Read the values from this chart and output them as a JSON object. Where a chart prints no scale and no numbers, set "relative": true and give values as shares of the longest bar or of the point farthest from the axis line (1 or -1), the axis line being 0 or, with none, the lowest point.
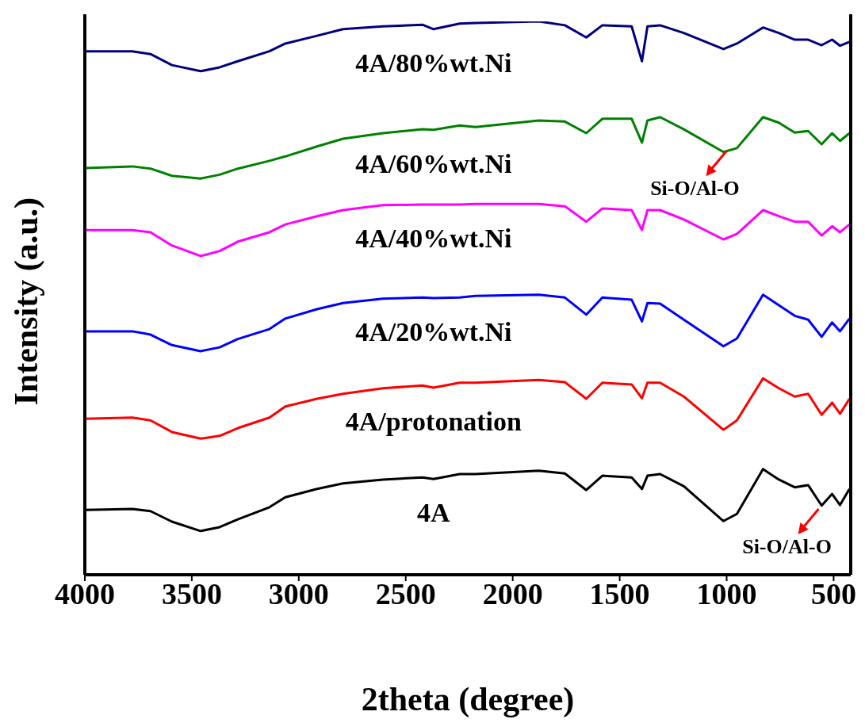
{
  "chart_data": {
    "type": "line",
    "xlabel": "2theta (degree)",
    "ylabel": "Intensity (a.u.)",
    "relative": true,
    "xlim": [
      4000,
      420
    ],
    "xticks": [
      4000,
      3500,
      3000,
      2500,
      2000,
      1500,
      1000,
      500
    ],
    "x": [
      4000,
      3778,
      3693,
      3593,
      3459,
      3370,
      3285,
      3137,
      3063,
      2915,
      2793,
      2607,
      2422,
      2370,
      2248,
      2174,
      1878,
      1756,
      1656,
      1581,
      1444,
      1396,
      1370,
      1311,
      1200,
      1015,
      952,
      830,
      756,
      682,
      619,
      556,
      507,
      470,
      426
    ],
    "series": [
      {
        "name": "4A/80%wt.Ni",
        "color": "#000080",
        "values": [
          0.946,
          0.946,
          0.941,
          0.921,
          0.91,
          0.917,
          0.928,
          0.946,
          0.96,
          0.974,
          0.986,
          0.991,
          0.994,
          0.986,
          0.996,
          0.997,
          1,
          0.993,
          0.971,
          0.993,
          0.991,
          0.928,
          0.991,
          0.993,
          0.979,
          0.95,
          0.96,
          0.989,
          0.979,
          0.967,
          0.967,
          0.957,
          0.967,
          0.956,
          0.963
        ]
      },
      {
        "name": "4A/60%wt.Ni",
        "color": "#008000",
        "values": [
          0.735,
          0.738,
          0.734,
          0.721,
          0.716,
          0.723,
          0.734,
          0.748,
          0.756,
          0.774,
          0.788,
          0.798,
          0.805,
          0.804,
          0.812,
          0.809,
          0.821,
          0.819,
          0.798,
          0.824,
          0.824,
          0.781,
          0.821,
          0.827,
          0.805,
          0.764,
          0.771,
          0.827,
          0.817,
          0.799,
          0.802,
          0.778,
          0.798,
          0.784,
          0.798
        ]
      },
      {
        "name": "4A/40%wt.Ni",
        "color": "#ff00ff",
        "values": [
          0.623,
          0.623,
          0.619,
          0.595,
          0.576,
          0.585,
          0.602,
          0.619,
          0.633,
          0.648,
          0.659,
          0.668,
          0.669,
          0.669,
          0.669,
          0.67,
          0.67,
          0.666,
          0.638,
          0.662,
          0.659,
          0.623,
          0.659,
          0.659,
          0.642,
          0.606,
          0.616,
          0.659,
          0.648,
          0.638,
          0.638,
          0.613,
          0.63,
          0.619,
          0.633
        ]
      },
      {
        "name": "4A/20%wt.Ni",
        "color": "#0000ff",
        "values": [
          0.44,
          0.44,
          0.434,
          0.415,
          0.404,
          0.411,
          0.426,
          0.444,
          0.463,
          0.48,
          0.491,
          0.499,
          0.501,
          0.5,
          0.501,
          0.504,
          0.506,
          0.501,
          0.47,
          0.501,
          0.497,
          0.458,
          0.491,
          0.49,
          0.461,
          0.413,
          0.427,
          0.506,
          0.487,
          0.468,
          0.461,
          0.43,
          0.456,
          0.44,
          0.463
        ]
      },
      {
        "name": "4A/protonation",
        "color": "#ff0000",
        "values": [
          0.282,
          0.284,
          0.279,
          0.258,
          0.246,
          0.251,
          0.265,
          0.284,
          0.304,
          0.318,
          0.327,
          0.337,
          0.342,
          0.338,
          0.347,
          0.347,
          0.352,
          0.348,
          0.318,
          0.347,
          0.344,
          0.319,
          0.347,
          0.347,
          0.322,
          0.262,
          0.279,
          0.355,
          0.337,
          0.322,
          0.327,
          0.289,
          0.311,
          0.291,
          0.318
        ]
      },
      {
        "name": "4A",
        "color": "#000000",
        "values": [
          0.117,
          0.119,
          0.115,
          0.096,
          0.079,
          0.086,
          0.1,
          0.122,
          0.14,
          0.155,
          0.165,
          0.172,
          0.176,
          0.173,
          0.182,
          0.182,
          0.188,
          0.183,
          0.153,
          0.179,
          0.176,
          0.155,
          0.179,
          0.182,
          0.16,
          0.097,
          0.11,
          0.191,
          0.172,
          0.158,
          0.162,
          0.125,
          0.146,
          0.126,
          0.155
        ]
      }
    ],
    "annotations": [
      {
        "text": "Si-O/Al-O",
        "x": 1000,
        "y": 0.766
      },
      {
        "text": "Si-O/Al-O",
        "x": 570,
        "y": 0.119
      }
    ]
  }
}
